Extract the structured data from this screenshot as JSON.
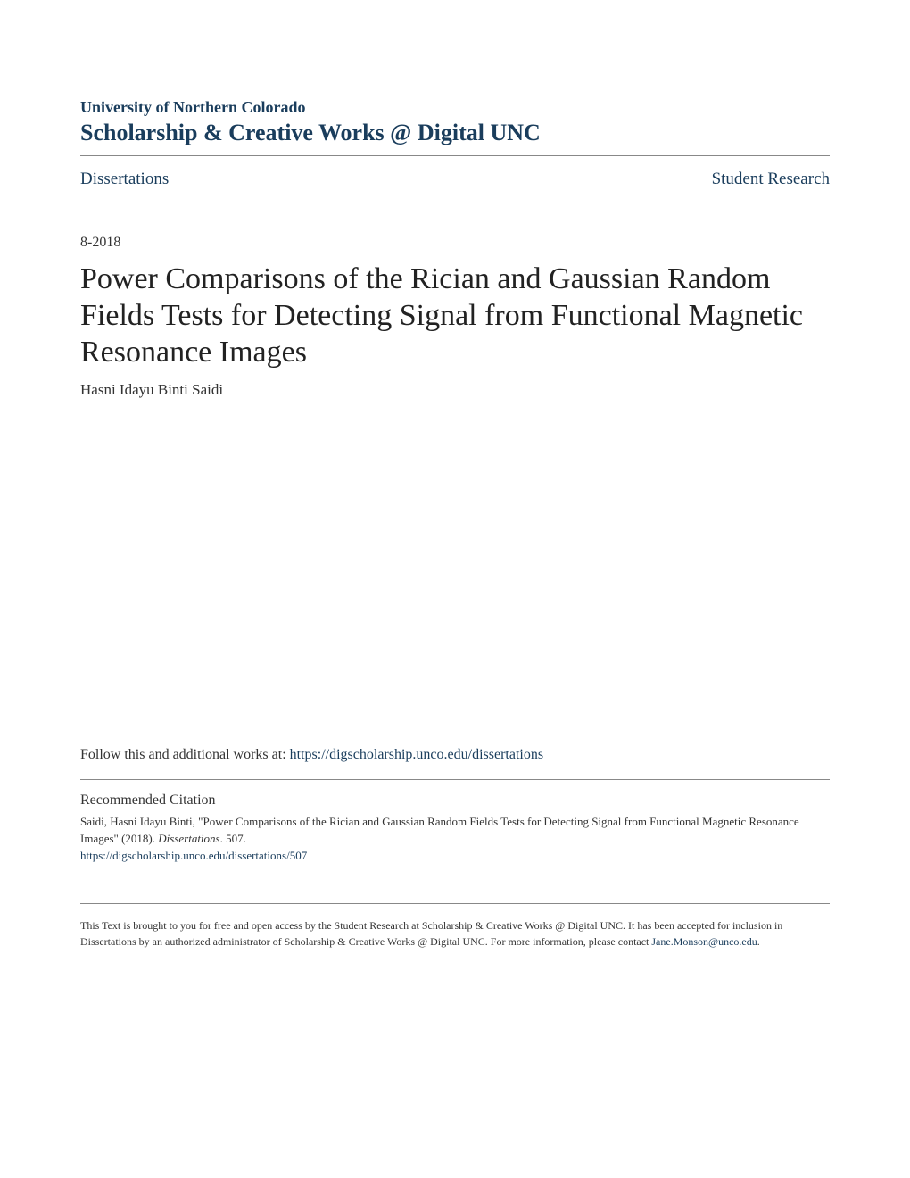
{
  "header": {
    "institution": "University of Northern Colorado",
    "repository": "Scholarship & Creative Works @ Digital UNC"
  },
  "nav": {
    "left": "Dissertations",
    "right": "Student Research"
  },
  "date": "8-2018",
  "title": "Power Comparisons of the Rician and Gaussian Random Fields Tests for Detecting Signal from Functional Magnetic Resonance Images",
  "author": "Hasni Idayu Binti Saidi",
  "follow": {
    "prefix": "Follow this and additional works at: ",
    "link_text": "https://digscholarship.unco.edu/dissertations"
  },
  "citation": {
    "header": "Recommended Citation",
    "text_part1": "Saidi, Hasni Idayu Binti, \"Power Comparisons of the Rician and Gaussian Random Fields Tests for Detecting Signal from Functional Magnetic Resonance Images\" (2018). ",
    "text_italic": "Dissertations",
    "text_part2": ". 507.",
    "link": "https://digscholarship.unco.edu/dissertations/507"
  },
  "footer": {
    "text": "This Text is brought to you for free and open access by the Student Research at Scholarship & Creative Works @ Digital UNC. It has been accepted for inclusion in Dissertations by an authorized administrator of Scholarship & Creative Works @ Digital UNC. For more information, please contact ",
    "link_text": "Jane.Monson@unco.edu",
    "suffix": "."
  },
  "colors": {
    "brand": "#1a3d5c",
    "text": "#333333",
    "divider": "#888888",
    "background": "#ffffff"
  }
}
